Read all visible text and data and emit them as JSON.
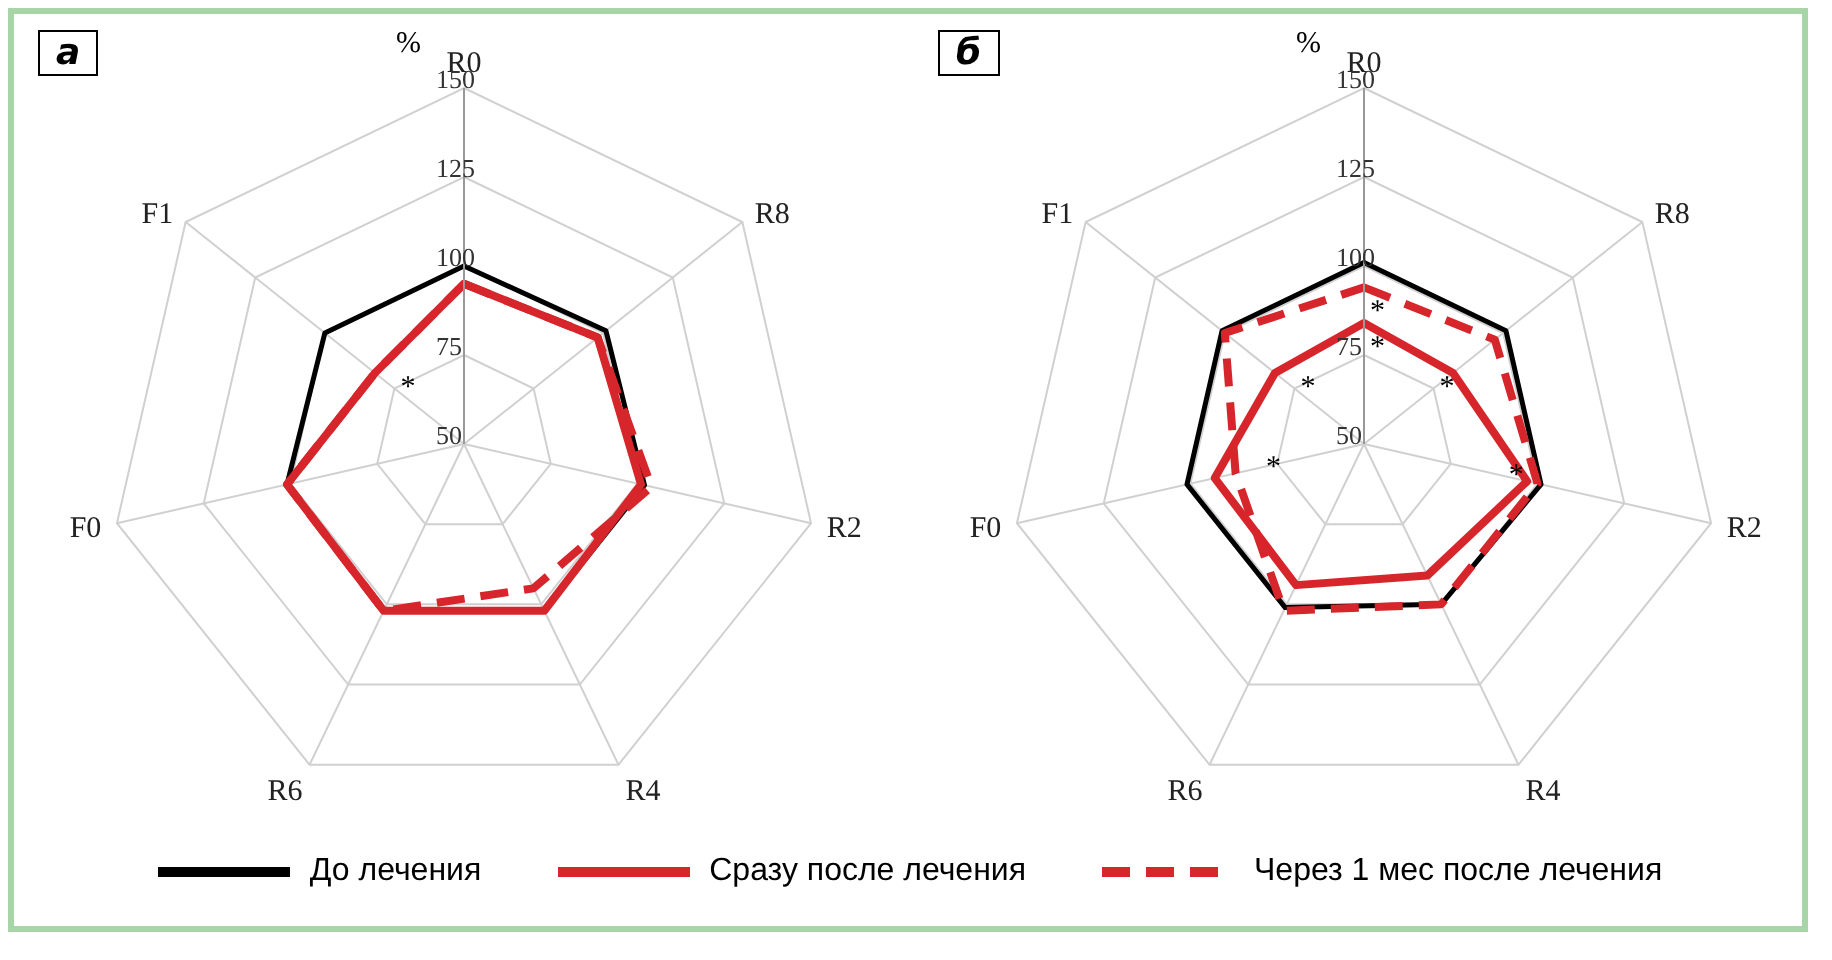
{
  "chart_data": [
    {
      "type": "radar",
      "title": "а",
      "ylabel": "%",
      "categories": [
        "R0",
        "R8",
        "R2",
        "R4",
        "R6",
        "F0",
        "F1"
      ],
      "ylim": [
        50,
        150
      ],
      "yticks": [
        50,
        75,
        100,
        125,
        150
      ],
      "grid": true,
      "legend": "bottom",
      "series": [
        {
          "name": "До лечения",
          "color": "#000000",
          "line_style": "solid",
          "values": [
            100,
            101,
            102,
            102,
            102,
            101,
            100
          ]
        },
        {
          "name": "Сразу после лечения",
          "color": "#d7262b",
          "line_style": "solid",
          "values": [
            95,
            98,
            101,
            102,
            102,
            101,
            82
          ]
        },
        {
          "name": "Через 1 мес после лечения",
          "color": "#d7262b",
          "line_style": "dashed",
          "values": [
            95,
            98,
            104,
            95,
            102,
            101,
            82
          ]
        }
      ],
      "annotations": [
        {
          "text": "*",
          "x": "F1"
        }
      ]
    },
    {
      "type": "radar",
      "title": "б",
      "ylabel": "%",
      "categories": [
        "R0",
        "R8",
        "R2",
        "R4",
        "R6",
        "F0",
        "F1"
      ],
      "ylim": [
        50,
        150
      ],
      "yticks": [
        50,
        75,
        100,
        125,
        150
      ],
      "grid": true,
      "series": [
        {
          "color": "#000000",
          "line_style": "solid",
          "values": [
            101,
            101,
            101,
            100,
            101,
            101,
            101
          ]
        },
        {
          "color": "#d7262b",
          "line_style": "solid",
          "values": [
            84,
            82,
            97,
            91,
            94,
            93,
            82
          ]
        },
        {
          "color": "#d7262b",
          "line_style": "dashed",
          "values": [
            94,
            97,
            100,
            100,
            102,
            87,
            100
          ]
        }
      ],
      "annotations": [
        {
          "text": "*",
          "x": "R0"
        },
        {
          "text": "*",
          "x": "R0"
        },
        {
          "text": "*",
          "x": "F1"
        },
        {
          "text": "*",
          "x": "R8"
        },
        {
          "text": "*",
          "x": "R2"
        },
        {
          "text": "*",
          "x": "F0"
        }
      ]
    }
  ]
}
